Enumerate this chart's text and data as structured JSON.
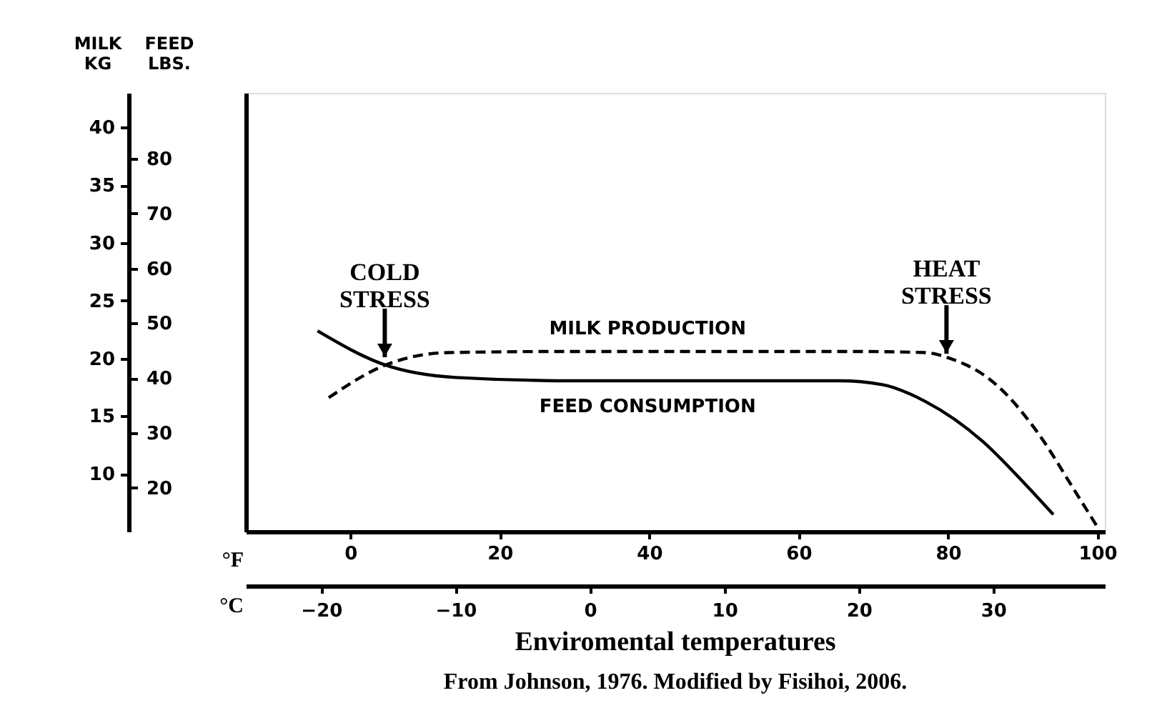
{
  "chart_data": {
    "type": "line",
    "xlabel": "°F",
    "x2label": "°C",
    "ylabel": "MILK KG",
    "y2label": "FEED LBS.",
    "xlim": [
      -14,
      101
    ],
    "xticks": [
      0,
      20,
      40,
      60,
      80,
      100
    ],
    "x2lim": [
      -25.6,
      38.3
    ],
    "x2ticks": [
      -20,
      -10,
      0,
      10,
      20,
      30
    ],
    "ylim": [
      5,
      43
    ],
    "yticks": [
      10,
      15,
      20,
      25,
      30,
      35,
      40
    ],
    "y2lim": [
      12,
      92
    ],
    "y2ticks": [
      20,
      30,
      40,
      50,
      60,
      70,
      80
    ],
    "grid": false,
    "legend": false,
    "marker": "none",
    "series": [
      {
        "name": "MILK PRODUCTION",
        "color": "#000000",
        "line_style": "dashed",
        "x": [
          -2.9,
          4.6,
          13.1,
          29.3,
          48.4,
          67.4,
          77,
          79.8,
          86.5,
          92.2,
          97,
          100.2
        ],
        "values": [
          16.6,
          19.4,
          20.5,
          20.6,
          20.6,
          20.6,
          20.5,
          20.1,
          17.7,
          13.4,
          8.5,
          5.2
        ]
      },
      {
        "name": "FEED CONSUMPTION",
        "color": "#000000",
        "line_style": "solid",
        "axis": "y2",
        "x": [
          -4.4,
          4.6,
          14.1,
          29.3,
          48.4,
          65.5,
          71.2,
          77,
          84.6,
          90.3,
          94.1
        ],
        "values": [
          48.6,
          42.4,
          40.1,
          39.5,
          39.5,
          39.5,
          38.8,
          35.7,
          28.5,
          20.7,
          15.1
        ]
      }
    ],
    "annotations": [
      {
        "text": "COLD STRESS",
        "x": 4.6,
        "y": 20.1
      },
      {
        "text": "HEAT STRESS",
        "x": 79.8,
        "y": 20.4
      },
      "Enviromental temperatures",
      "From Johnson, 1976. Modified by Fisihoi, 2006."
    ]
  }
}
